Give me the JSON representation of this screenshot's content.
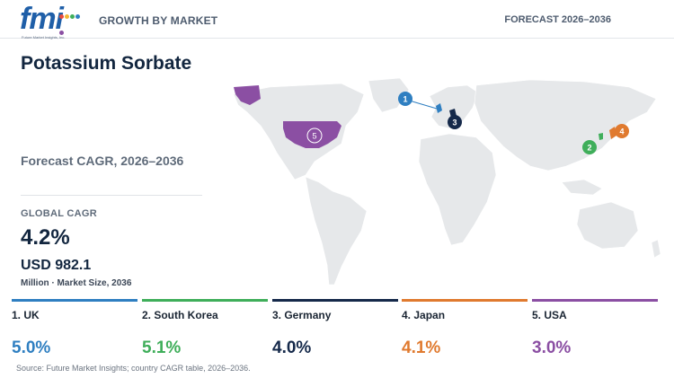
{
  "header": {
    "logo_text": "fmi",
    "logo_sub": "Future Market Insights, Inc.",
    "section_label": "GROWTH BY MARKET",
    "forecast_label": "FORECAST 2026–2036"
  },
  "summary": {
    "title": "Potassium Sorbate",
    "forecast_cagr_label": "Forecast CAGR, 2026–2036",
    "global_cagr_label": "GLOBAL CAGR",
    "global_cagr_value": "4.2%",
    "market_size_value": "USD 982.1",
    "market_size_sub": "Million · Market Size, 2036"
  },
  "countries": [
    {
      "rank": "1",
      "name": "1. UK",
      "cagr": "5.0%",
      "color": "#2f7fc1"
    },
    {
      "rank": "2",
      "name": "2. South Korea",
      "cagr": "5.1%",
      "color": "#3fae5a"
    },
    {
      "rank": "3",
      "name": "3. Germany",
      "cagr": "4.0%",
      "color": "#15294a"
    },
    {
      "rank": "4",
      "name": "4. Japan",
      "cagr": "4.1%",
      "color": "#e07a2f"
    },
    {
      "rank": "5",
      "name": "5. USA",
      "cagr": "3.0%",
      "color": "#8b4fa3"
    }
  ],
  "map": {
    "marker_1": "1",
    "marker_2": "2",
    "marker_3": "3",
    "marker_4": "4",
    "marker_5": "5",
    "land_color": "#e6e8ea",
    "highlight_usa": "#8b4fa3"
  },
  "footer": {
    "source": "Source: Future Market Insights; country CAGR table, 2026–2036."
  }
}
